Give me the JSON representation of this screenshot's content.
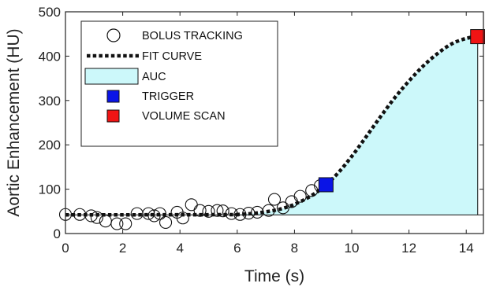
{
  "chart_data": {
    "type": "line",
    "xlabel": "Time (s)",
    "ylabel": "Aortic Enhancement (HU)",
    "xlim": [
      0,
      14.6
    ],
    "ylim": [
      0,
      500
    ],
    "x_ticks": [
      0,
      2,
      4,
      6,
      8,
      10,
      12,
      14
    ],
    "y_ticks": [
      0,
      100,
      200,
      300,
      400,
      500
    ],
    "grid": false,
    "legend_position": "top-left",
    "baseline_hu": 42,
    "colors": {
      "auc_fill": "#ccf8fa",
      "trigger": "#0a14e6",
      "volume_scan": "#f01414",
      "fit_curve": "#111111"
    },
    "series": [
      {
        "name": "BOLUS TRACKING",
        "marker": "open-circle",
        "points": [
          [
            0.0,
            43
          ],
          [
            0.5,
            43
          ],
          [
            0.9,
            40
          ],
          [
            1.1,
            36
          ],
          [
            1.4,
            28
          ],
          [
            1.8,
            22
          ],
          [
            2.1,
            22
          ],
          [
            2.5,
            45
          ],
          [
            2.9,
            45
          ],
          [
            3.1,
            40
          ],
          [
            3.3,
            45
          ],
          [
            3.5,
            25
          ],
          [
            3.9,
            48
          ],
          [
            4.1,
            35
          ],
          [
            4.4,
            65
          ],
          [
            4.7,
            52
          ],
          [
            5.0,
            50
          ],
          [
            5.3,
            52
          ],
          [
            5.5,
            51
          ],
          [
            5.8,
            45
          ],
          [
            6.1,
            43
          ],
          [
            6.4,
            46
          ],
          [
            6.7,
            48
          ],
          [
            7.1,
            52
          ],
          [
            7.3,
            77
          ],
          [
            7.6,
            58
          ],
          [
            7.9,
            72
          ],
          [
            8.2,
            84
          ],
          [
            8.6,
            97
          ],
          [
            8.9,
            108
          ]
        ]
      },
      {
        "name": "FIT CURVE",
        "style": "dotted-line",
        "points": [
          [
            0,
            42
          ],
          [
            5.5,
            42.5
          ],
          [
            6.0,
            43
          ],
          [
            6.5,
            45
          ],
          [
            7.0,
            49
          ],
          [
            7.5,
            55
          ],
          [
            8.0,
            66
          ],
          [
            8.5,
            82
          ],
          [
            9.0,
            104
          ],
          [
            9.5,
            135
          ],
          [
            10.0,
            174
          ],
          [
            10.5,
            218
          ],
          [
            11.0,
            263
          ],
          [
            11.5,
            306
          ],
          [
            12.0,
            344
          ],
          [
            12.5,
            378
          ],
          [
            13.0,
            406
          ],
          [
            13.5,
            428
          ],
          [
            14.0,
            440
          ],
          [
            14.4,
            444
          ]
        ]
      },
      {
        "name": "AUC",
        "style": "filled-area",
        "description_range": [
          0,
          14.4
        ]
      },
      {
        "name": "TRIGGER",
        "marker": "filled-square",
        "points": [
          [
            9.1,
            110
          ]
        ]
      },
      {
        "name": "VOLUME SCAN",
        "marker": "filled-square",
        "points": [
          [
            14.4,
            444
          ]
        ]
      }
    ]
  }
}
